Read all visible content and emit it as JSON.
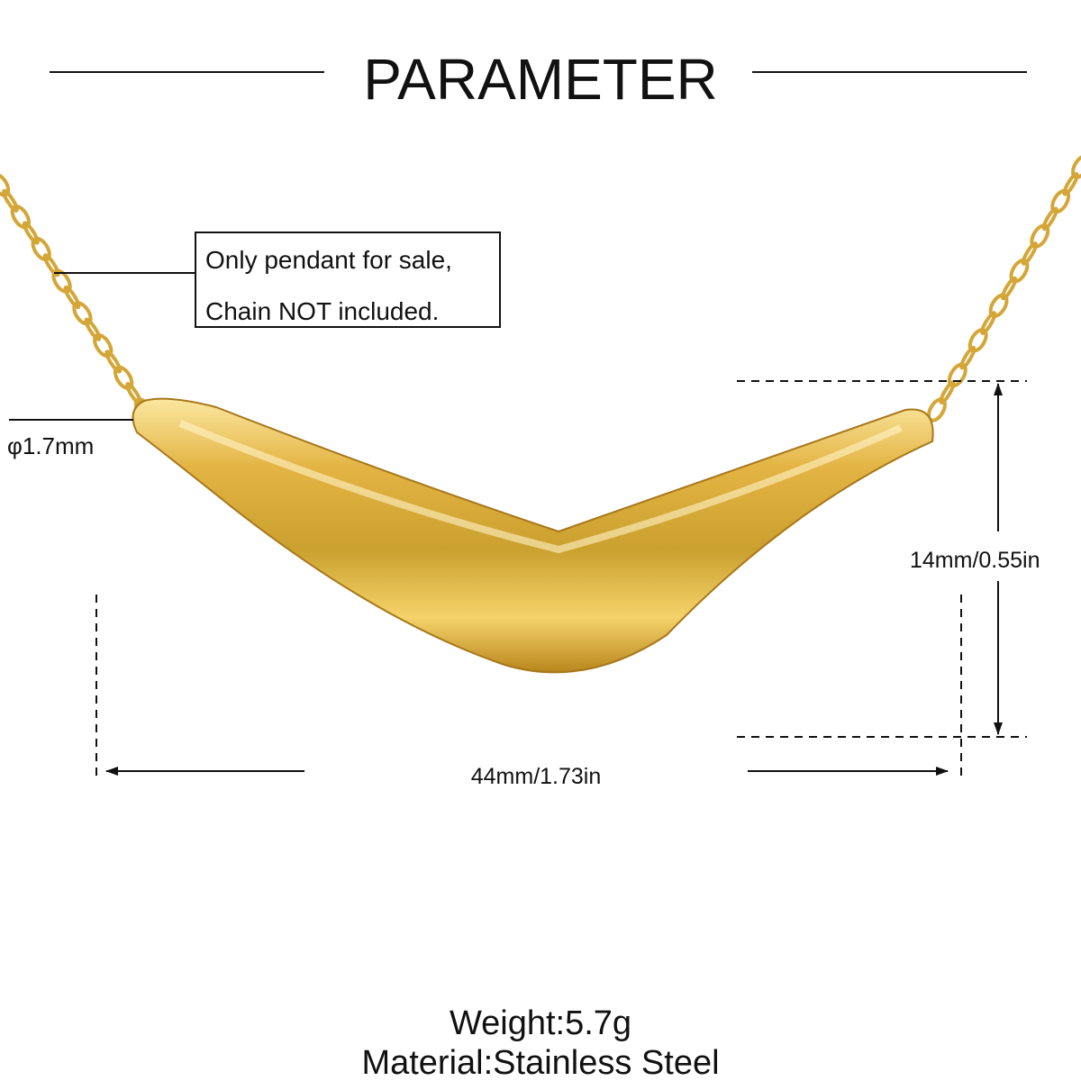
{
  "header": {
    "title": "PARAMETER"
  },
  "note": {
    "lines": [
      "Only pendant for sale,",
      "Chain NOT included."
    ]
  },
  "dimensions": {
    "chain_diameter": "φ1.7mm",
    "height": "14mm/0.55in",
    "width": "44mm/1.73in"
  },
  "specs": {
    "weight": "Weight:5.7g",
    "material": "Material:Stainless Steel"
  }
}
